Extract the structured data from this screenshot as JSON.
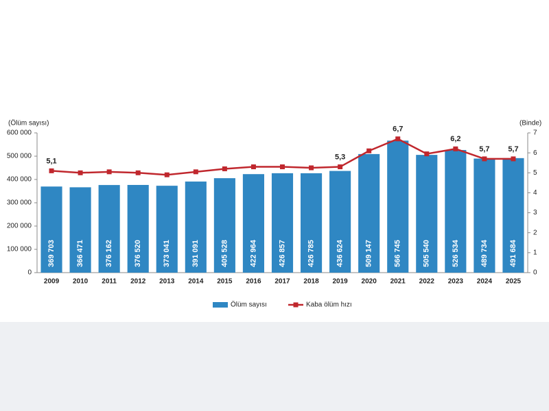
{
  "chart_data": {
    "type": "bar-line",
    "y_label": "(Ölüm sayısı)",
    "y2_label": "(Binde)",
    "categories": [
      "2009",
      "2010",
      "2011",
      "2012",
      "2013",
      "2014",
      "2015",
      "2016",
      "2017",
      "2018",
      "2019",
      "2020",
      "2021",
      "2022",
      "2023",
      "2024",
      "2025"
    ],
    "series": [
      {
        "name": "Ölüm sayısı",
        "type": "bar",
        "color": "#2f87c3",
        "values": [
          369703,
          366471,
          376162,
          376520,
          373041,
          391091,
          405528,
          422964,
          426857,
          426785,
          436624,
          509147,
          566745,
          505540,
          526534,
          489734,
          491684
        ],
        "value_labels": [
          "369 703",
          "366 471",
          "376 162",
          "376 520",
          "373 041",
          "391 091",
          "405 528",
          "422 964",
          "426 857",
          "426 785",
          "436 624",
          "509 147",
          "566 745",
          "505 540",
          "526 534",
          "489 734",
          "491 684"
        ]
      },
      {
        "name": "Kaba ölüm hızı",
        "type": "line",
        "axis": "y2",
        "color": "#c0272d",
        "values": [
          5.1,
          5.0,
          5.05,
          5.0,
          4.9,
          5.05,
          5.2,
          5.3,
          5.3,
          5.25,
          5.3,
          6.1,
          6.7,
          5.95,
          6.2,
          5.7,
          5.7
        ],
        "value_labels": [
          "5,1",
          null,
          null,
          null,
          null,
          null,
          null,
          null,
          null,
          null,
          "5,3",
          null,
          "6,7",
          null,
          "6,2",
          "5,7",
          "5,7"
        ]
      }
    ],
    "ylim": [
      0,
      600000
    ],
    "yticks": [
      0,
      {
        "value": 100000,
        "label": "100 000"
      },
      {
        "value": 200000,
        "label": "200 000"
      },
      {
        "value": 300000,
        "label": "300 000"
      },
      {
        "value": 400000,
        "label": "400 000"
      },
      {
        "value": 500000,
        "label": "500 000"
      },
      {
        "value": 600000,
        "label": "600 000"
      }
    ],
    "y2lim": [
      0,
      7
    ],
    "y2ticks": [
      0,
      1,
      2,
      3,
      4,
      5,
      6,
      7
    ],
    "legend": "bottom"
  }
}
